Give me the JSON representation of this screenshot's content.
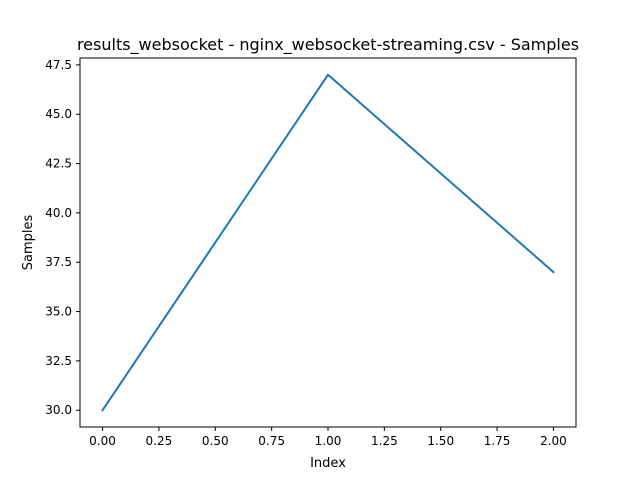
{
  "chart_data": {
    "type": "line",
    "title": "results_websocket - nginx_websocket-streaming.csv - Samples",
    "xlabel": "Index",
    "ylabel": "Samples",
    "x": [
      0,
      1,
      2
    ],
    "series": [
      {
        "values": [
          30,
          47,
          37
        ],
        "color": "#1f77b4"
      }
    ],
    "xlim": [
      -0.1,
      2.1
    ],
    "ylim": [
      29.15,
      47.85
    ],
    "xticks": [
      0.0,
      0.25,
      0.5,
      0.75,
      1.0,
      1.25,
      1.5,
      1.75,
      2.0
    ],
    "xtick_labels": [
      "0.00",
      "0.25",
      "0.50",
      "0.75",
      "1.00",
      "1.25",
      "1.50",
      "1.75",
      "2.00"
    ],
    "yticks": [
      30.0,
      32.5,
      35.0,
      37.5,
      40.0,
      42.5,
      45.0,
      47.5
    ],
    "ytick_labels": [
      "30.0",
      "32.5",
      "35.0",
      "37.5",
      "40.0",
      "42.5",
      "45.0",
      "47.5"
    ],
    "grid": false,
    "legend": "none"
  }
}
